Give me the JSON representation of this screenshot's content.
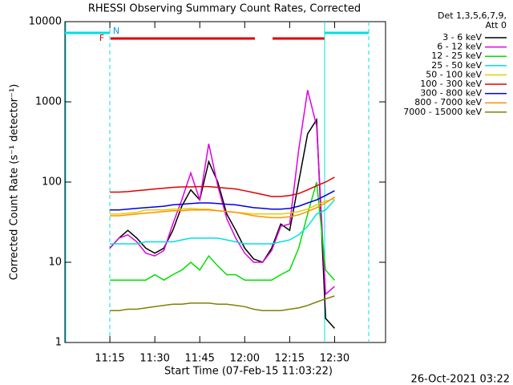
{
  "chart_data": {
    "type": "line",
    "title": "RHESSI Observing Summary Count Rates, Corrected",
    "xlabel": "Start Time (07-Feb-15 11:03:22)",
    "ylabel": "Corrected Count Rate (s⁻¹ detector⁻¹)",
    "legend_title": [
      "Det 1,3,5,6,7,9,",
      "Att 0"
    ],
    "timestamp": "26-Oct-2021 03:22",
    "flags": [
      "F",
      "N"
    ],
    "log_y": true,
    "xlim": [
      "11:00",
      "12:47"
    ],
    "xticks": [
      "11:15",
      "11:30",
      "11:45",
      "12:00",
      "12:15",
      "12:30"
    ],
    "ylim": [
      1,
      10000
    ],
    "yticks": [
      1,
      10,
      100,
      1000,
      10000
    ],
    "x": [
      "11:15",
      "11:18",
      "11:21",
      "11:24",
      "11:27",
      "11:30",
      "11:33",
      "11:36",
      "11:39",
      "11:42",
      "11:45",
      "11:48",
      "11:51",
      "11:54",
      "11:57",
      "12:00",
      "12:03",
      "12:06",
      "12:09",
      "12:12",
      "12:15",
      "12:18",
      "12:21",
      "12:24",
      "12:27",
      "12:30"
    ],
    "series": [
      {
        "name": "3 - 6 keV",
        "color": "#000000",
        "values": [
          15,
          20,
          25,
          20,
          15,
          13,
          15,
          25,
          50,
          80,
          60,
          180,
          100,
          40,
          25,
          15,
          11,
          10,
          15,
          30,
          25,
          100,
          400,
          600,
          2,
          1.5
        ]
      },
      {
        "name": "6 - 12 keV",
        "color": "#e000e0",
        "values": [
          15,
          20,
          22,
          18,
          13,
          12,
          14,
          30,
          60,
          130,
          60,
          300,
          90,
          35,
          20,
          13,
          10,
          10,
          14,
          28,
          30,
          250,
          1400,
          500,
          4,
          5
        ]
      },
      {
        "name": "12 - 25 keV",
        "color": "#00e000",
        "values": [
          6,
          6,
          6,
          6,
          6,
          7,
          6,
          7,
          8,
          10,
          8,
          12,
          9,
          7,
          7,
          6,
          6,
          6,
          6,
          7,
          8,
          15,
          40,
          100,
          8,
          6
        ]
      },
      {
        "name": "25 - 50 keV",
        "color": "#00e0e0",
        "values": [
          17,
          17,
          17,
          17,
          18,
          18,
          18,
          18,
          19,
          20,
          20,
          20,
          20,
          19,
          18,
          17,
          17,
          17,
          17,
          18,
          19,
          22,
          28,
          40,
          45,
          60
        ]
      },
      {
        "name": "50 - 100 keV",
        "color": "#e0d000",
        "values": [
          40,
          40,
          41,
          42,
          45,
          45,
          45,
          46,
          46,
          47,
          46,
          46,
          44,
          43,
          42,
          41,
          40,
          40,
          40,
          40,
          41,
          43,
          46,
          52,
          58,
          62
        ]
      },
      {
        "name": "100 - 300 keV",
        "color": "#e00000",
        "values": [
          75,
          75,
          76,
          78,
          80,
          82,
          84,
          86,
          87,
          87,
          88,
          88,
          86,
          84,
          82,
          78,
          74,
          70,
          66,
          66,
          68,
          72,
          80,
          90,
          100,
          115
        ]
      },
      {
        "name": "300 - 800 keV",
        "color": "#0000e0",
        "values": [
          45,
          45,
          46,
          47,
          48,
          49,
          50,
          52,
          53,
          54,
          55,
          55,
          54,
          53,
          52,
          50,
          48,
          47,
          46,
          46,
          47,
          50,
          55,
          60,
          68,
          78
        ]
      },
      {
        "name": "800 - 7000 keV",
        "color": "#ff9000",
        "values": [
          38,
          38,
          39,
          40,
          41,
          42,
          43,
          44,
          44,
          45,
          45,
          45,
          44,
          43,
          42,
          40,
          38,
          37,
          36,
          36,
          37,
          39,
          43,
          48,
          55,
          65
        ]
      },
      {
        "name": "7000 - 15000 keV",
        "color": "#808000",
        "values": [
          2.5,
          2.5,
          2.6,
          2.6,
          2.7,
          2.8,
          2.9,
          3,
          3,
          3.1,
          3.1,
          3.1,
          3,
          3,
          2.9,
          2.8,
          2.6,
          2.5,
          2.5,
          2.5,
          2.6,
          2.7,
          2.9,
          3.2,
          3.5,
          3.8
        ]
      }
    ]
  }
}
